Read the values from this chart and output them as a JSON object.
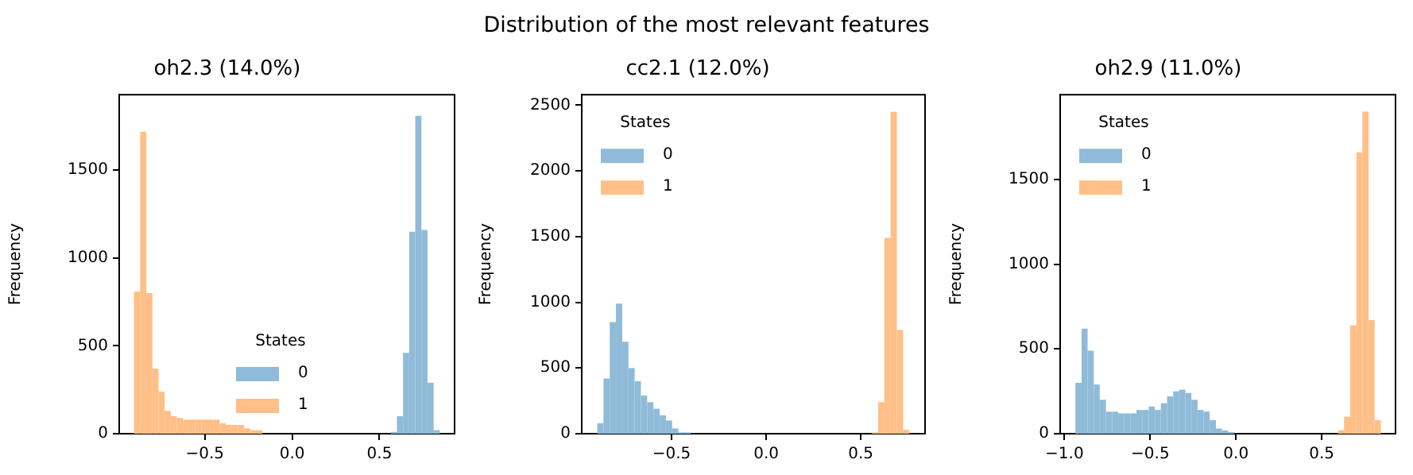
{
  "chart_data": [
    {
      "type": "histogram",
      "title": "oh2.3 (14.0%)",
      "annotations": [
        "Distribution of the most relevant features"
      ],
      "ylabel": "Frequency",
      "legend_title": "States",
      "legend": "bottom",
      "grid": false,
      "xlim": [
        -0.99,
        0.93
      ],
      "xticks": [
        {
          "value": -0.5,
          "label": "−0.5"
        },
        {
          "value": 0,
          "label": "0.0"
        },
        {
          "value": 0.5,
          "label": "0.5"
        }
      ],
      "ylim": [
        0,
        1930
      ],
      "yticks": [
        0,
        500,
        1000,
        1500
      ],
      "bins": [
        -0.905,
        -0.87,
        -0.835,
        -0.8,
        -0.765,
        -0.73,
        -0.695,
        -0.66,
        -0.625,
        -0.59,
        -0.555,
        -0.52,
        -0.485,
        -0.45,
        -0.415,
        -0.38,
        -0.345,
        -0.31,
        -0.275,
        -0.24,
        -0.205,
        -0.17,
        -0.135,
        -0.1,
        -0.065,
        -0.03,
        0.005,
        0.04,
        0.075,
        0.11,
        0.145,
        0.18,
        0.215,
        0.25,
        0.285,
        0.32,
        0.355,
        0.39,
        0.425,
        0.46,
        0.495,
        0.53,
        0.565,
        0.6,
        0.635,
        0.67,
        0.705,
        0.74,
        0.775,
        0.81,
        0.845
      ],
      "series": [
        {
          "name": "0",
          "color": "#8fbbd9",
          "values": [
            0,
            0,
            0,
            0,
            0,
            0,
            0,
            0,
            0,
            0,
            0,
            0,
            0,
            0,
            0,
            0,
            0,
            0,
            0,
            0,
            0,
            0,
            0,
            0,
            0,
            0,
            0,
            0,
            0,
            0,
            0,
            0,
            0,
            0,
            0,
            0,
            0,
            0,
            0,
            0,
            0,
            0,
            10,
            100,
            460,
            1150,
            1810,
            1160,
            290,
            20
          ]
        },
        {
          "name": "1",
          "color": "#ffbf86",
          "values": [
            810,
            1720,
            800,
            370,
            240,
            130,
            100,
            90,
            80,
            80,
            80,
            80,
            80,
            80,
            60,
            50,
            50,
            50,
            30,
            20,
            20,
            0,
            0,
            0,
            0,
            0,
            0,
            0,
            0,
            0,
            0,
            0,
            0,
            0,
            0,
            0,
            0,
            0,
            0,
            0,
            0,
            0,
            0,
            0,
            0,
            0,
            0,
            0,
            0,
            0
          ]
        }
      ]
    },
    {
      "type": "histogram",
      "title": "cc2.1 (12.0%)",
      "ylabel": "Frequency",
      "legend_title": "States",
      "legend": "top left",
      "grid": false,
      "xlim": [
        -0.975,
        0.84
      ],
      "xticks": [
        {
          "value": -0.5,
          "label": "−0.5"
        },
        {
          "value": 0,
          "label": "0.0"
        },
        {
          "value": 0.5,
          "label": "0.5"
        }
      ],
      "ylim": [
        0,
        2580
      ],
      "yticks": [
        0,
        500,
        1000,
        1500,
        2000,
        2500
      ],
      "bins": [
        -0.893,
        -0.86,
        -0.827,
        -0.794,
        -0.761,
        -0.728,
        -0.695,
        -0.662,
        -0.629,
        -0.596,
        -0.563,
        -0.53,
        -0.497,
        -0.464,
        -0.431,
        -0.398,
        -0.365,
        -0.332,
        -0.299,
        -0.266,
        -0.233,
        -0.2,
        -0.167,
        -0.134,
        -0.101,
        -0.068,
        -0.035,
        -0.002,
        0.031,
        0.064,
        0.097,
        0.13,
        0.163,
        0.196,
        0.229,
        0.262,
        0.295,
        0.328,
        0.361,
        0.394,
        0.427,
        0.46,
        0.493,
        0.526,
        0.559,
        0.592,
        0.625,
        0.658,
        0.691,
        0.724,
        0.757
      ],
      "series": [
        {
          "name": "0",
          "color": "#8fbbd9",
          "values": [
            80,
            420,
            850,
            990,
            700,
            500,
            400,
            290,
            240,
            190,
            140,
            100,
            40,
            10,
            10,
            0,
            0,
            0,
            0,
            0,
            0,
            0,
            0,
            0,
            0,
            0,
            0,
            0,
            0,
            0,
            0,
            0,
            0,
            0,
            0,
            0,
            0,
            0,
            0,
            0,
            0,
            0,
            0,
            0,
            0,
            0,
            0,
            0,
            0,
            0
          ]
        },
        {
          "name": "1",
          "color": "#ffbf86",
          "values": [
            0,
            0,
            0,
            0,
            0,
            0,
            0,
            0,
            0,
            0,
            0,
            0,
            0,
            0,
            0,
            0,
            0,
            0,
            0,
            0,
            0,
            0,
            0,
            0,
            0,
            0,
            0,
            0,
            0,
            0,
            0,
            0,
            0,
            0,
            0,
            0,
            0,
            0,
            0,
            0,
            0,
            0,
            0,
            0,
            10,
            240,
            1490,
            2450,
            790,
            30
          ]
        }
      ]
    },
    {
      "type": "histogram",
      "title": "oh2.9 (11.0%)",
      "ylabel": "Frequency",
      "legend_title": "States",
      "legend": "top left",
      "grid": false,
      "xlim": [
        -1.025,
        0.93
      ],
      "xticks": [
        {
          "value": -1,
          "label": "−1.0"
        },
        {
          "value": -0.5,
          "label": "−0.5"
        },
        {
          "value": 0,
          "label": "0.0"
        },
        {
          "value": 0.5,
          "label": "0.5"
        }
      ],
      "ylim": [
        0,
        2000
      ],
      "yticks": [
        0,
        500,
        1000,
        1500
      ],
      "bins": [
        -0.936,
        -0.9,
        -0.865,
        -0.829,
        -0.794,
        -0.758,
        -0.722,
        -0.687,
        -0.651,
        -0.616,
        -0.58,
        -0.544,
        -0.509,
        -0.473,
        -0.438,
        -0.402,
        -0.366,
        -0.331,
        -0.295,
        -0.26,
        -0.224,
        -0.188,
        -0.153,
        -0.117,
        -0.082,
        -0.046,
        -0.01,
        0.025,
        0.061,
        0.096,
        0.132,
        0.168,
        0.203,
        0.239,
        0.274,
        0.31,
        0.346,
        0.381,
        0.417,
        0.452,
        0.488,
        0.524,
        0.559,
        0.595,
        0.63,
        0.666,
        0.702,
        0.737,
        0.773,
        0.808,
        0.844
      ],
      "series": [
        {
          "name": "0",
          "color": "#8fbbd9",
          "values": [
            300,
            620,
            490,
            290,
            200,
            130,
            130,
            120,
            120,
            120,
            140,
            140,
            160,
            140,
            180,
            220,
            250,
            260,
            240,
            200,
            140,
            130,
            80,
            30,
            20,
            10,
            0,
            0,
            0,
            0,
            0,
            0,
            0,
            0,
            0,
            0,
            0,
            0,
            0,
            0,
            0,
            0,
            0,
            0,
            0,
            0,
            0,
            0,
            0,
            0
          ]
        },
        {
          "name": "1",
          "color": "#ffbf86",
          "values": [
            0,
            0,
            0,
            0,
            0,
            0,
            0,
            0,
            0,
            0,
            0,
            0,
            0,
            0,
            0,
            0,
            0,
            0,
            0,
            0,
            0,
            0,
            0,
            0,
            0,
            0,
            0,
            0,
            0,
            0,
            0,
            0,
            0,
            0,
            0,
            0,
            0,
            0,
            0,
            0,
            0,
            0,
            0,
            20,
            100,
            640,
            1660,
            1900,
            670,
            80
          ]
        }
      ]
    }
  ]
}
